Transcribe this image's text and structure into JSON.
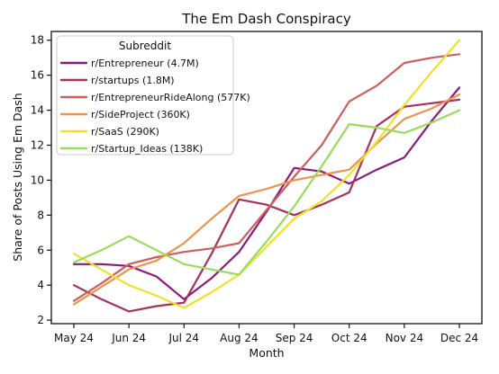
{
  "chart_data": {
    "type": "line",
    "title": "The Em Dash Conspiracy",
    "xlabel": "Month",
    "ylabel": "Share of Posts Using Em Dash",
    "categories": [
      "May 24",
      "Jun 24",
      "Jul 24",
      "Aug 24",
      "Sep 24",
      "Oct 24",
      "Nov 24",
      "Dec 24"
    ],
    "x": [
      0,
      0.5,
      1,
      1.5,
      2,
      2.5,
      3,
      3.5,
      4,
      4.5,
      5,
      5.5,
      6,
      6.5,
      7
    ],
    "ylim": [
      1.8,
      18.5
    ],
    "yticks": [
      2,
      4,
      6,
      8,
      10,
      12,
      14,
      16,
      18
    ],
    "grid": false,
    "legend": {
      "title": "Subreddit",
      "position": "top-left"
    },
    "series": [
      {
        "name": "r/Entrepreneur (4.7M)",
        "color": "#8b1a80",
        "values": [
          5.2,
          5.2,
          5.1,
          4.5,
          3.2,
          4.4,
          5.9,
          8.2,
          10.7,
          10.5,
          9.8,
          10.6,
          11.3,
          13.4,
          15.3
        ]
      },
      {
        "name": "r/startups (1.8M)",
        "color": "#a8305a",
        "values": [
          4.0,
          3.2,
          2.5,
          2.8,
          3.0,
          5.8,
          8.9,
          8.6,
          8.0,
          8.6,
          9.3,
          13.1,
          14.2,
          14.4,
          14.6
        ]
      },
      {
        "name": "r/EntrepreneurRideAlong (577K)",
        "color": "#cd5e5d",
        "values": [
          3.1,
          4.1,
          5.2,
          5.6,
          5.9,
          6.1,
          6.4,
          8.3,
          10.2,
          12.0,
          14.5,
          15.4,
          16.7,
          17.0,
          17.2
        ]
      },
      {
        "name": "r/SideProject (360K)",
        "color": "#f0934a",
        "values": [
          2.9,
          3.9,
          4.9,
          5.4,
          6.4,
          7.8,
          9.1,
          9.5,
          10.0,
          10.3,
          10.6,
          12.1,
          13.5,
          14.1,
          14.9
        ]
      },
      {
        "name": "r/SaaS (290K)",
        "color": "#f0e02a",
        "values": [
          5.8,
          4.9,
          4.0,
          3.4,
          2.7,
          3.6,
          4.6,
          6.2,
          7.8,
          8.8,
          10.3,
          12.2,
          14.3,
          16.2,
          18.0
        ]
      },
      {
        "name": "r/Startup_Ideas (138K)",
        "color": "#98dc5a",
        "values": [
          5.3,
          6.0,
          6.8,
          6.0,
          5.2,
          4.9,
          4.6,
          6.5,
          8.5,
          10.8,
          13.2,
          13.0,
          12.7,
          13.3,
          14.0
        ]
      }
    ]
  }
}
